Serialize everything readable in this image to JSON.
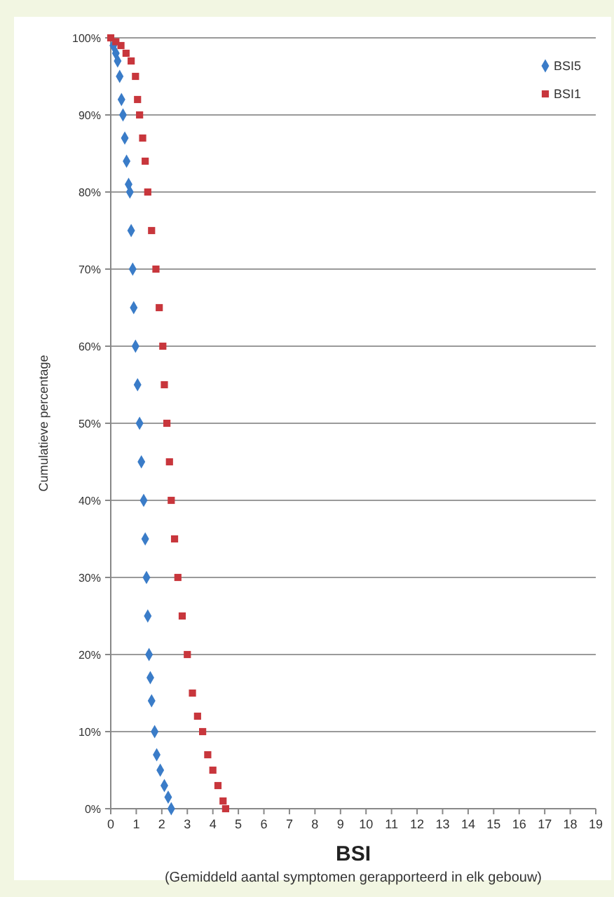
{
  "chart_data": {
    "type": "scatter",
    "xlabel": "BSI",
    "ylabel": "Cumulatieve percentage",
    "annotations": [
      "(Gemiddeld aantal symptomen gerapporteerd in elk gebouw)"
    ],
    "xlim": [
      0,
      19
    ],
    "xticks": [
      0,
      1,
      2,
      3,
      4,
      5,
      6,
      7,
      8,
      9,
      10,
      11,
      12,
      13,
      14,
      15,
      16,
      17,
      18,
      19
    ],
    "ylim": [
      0,
      100
    ],
    "yticks": [
      {
        "value": 0,
        "label": "0%"
      },
      {
        "value": 10,
        "label": "10%"
      },
      {
        "value": 20,
        "label": "20%"
      },
      {
        "value": 30,
        "label": "30%"
      },
      {
        "value": 40,
        "label": "40%"
      },
      {
        "value": 50,
        "label": "50%"
      },
      {
        "value": 60,
        "label": "60%"
      },
      {
        "value": 70,
        "label": "70%"
      },
      {
        "value": 80,
        "label": "80%"
      },
      {
        "value": 90,
        "label": "90%"
      },
      {
        "value": 100,
        "label": "100%"
      }
    ],
    "grid": "y",
    "legend": "top right",
    "series": [
      {
        "name": "BSI5",
        "color": "#3a7cc8",
        "marker": "diamond",
        "x": [
          0.1,
          0.2,
          0.27,
          0.35,
          0.42,
          0.48,
          0.55,
          0.62,
          0.7,
          0.75,
          0.8,
          0.86,
          0.9,
          0.97,
          1.05,
          1.13,
          1.2,
          1.29,
          1.35,
          1.4,
          1.45,
          1.5,
          1.55,
          1.6,
          1.72,
          1.8,
          1.94,
          2.1,
          2.25,
          2.37
        ],
        "values": [
          99,
          98,
          97,
          95,
          92,
          90,
          87,
          84,
          81,
          80,
          75,
          70,
          65,
          60,
          55,
          50,
          45,
          40,
          35,
          30,
          25,
          20,
          17,
          14,
          10,
          7,
          5,
          3,
          1.5,
          0
        ]
      },
      {
        "name": "BSI1",
        "color": "#c8363c",
        "marker": "square",
        "x": [
          0,
          0.2,
          0.4,
          0.6,
          0.8,
          0.97,
          1.05,
          1.13,
          1.25,
          1.35,
          1.45,
          1.6,
          1.77,
          1.9,
          2.04,
          2.1,
          2.2,
          2.3,
          2.37,
          2.5,
          2.63,
          2.8,
          3.0,
          3.2,
          3.4,
          3.6,
          3.8,
          4.0,
          4.2,
          4.4,
          4.5
        ],
        "values": [
          100,
          99.5,
          99,
          98,
          97,
          95,
          92,
          90,
          87,
          84,
          80,
          75,
          70,
          65,
          60,
          55,
          50,
          45,
          40,
          35,
          30,
          25,
          20,
          15,
          12,
          10,
          7,
          5,
          3,
          1,
          0
        ]
      }
    ]
  }
}
